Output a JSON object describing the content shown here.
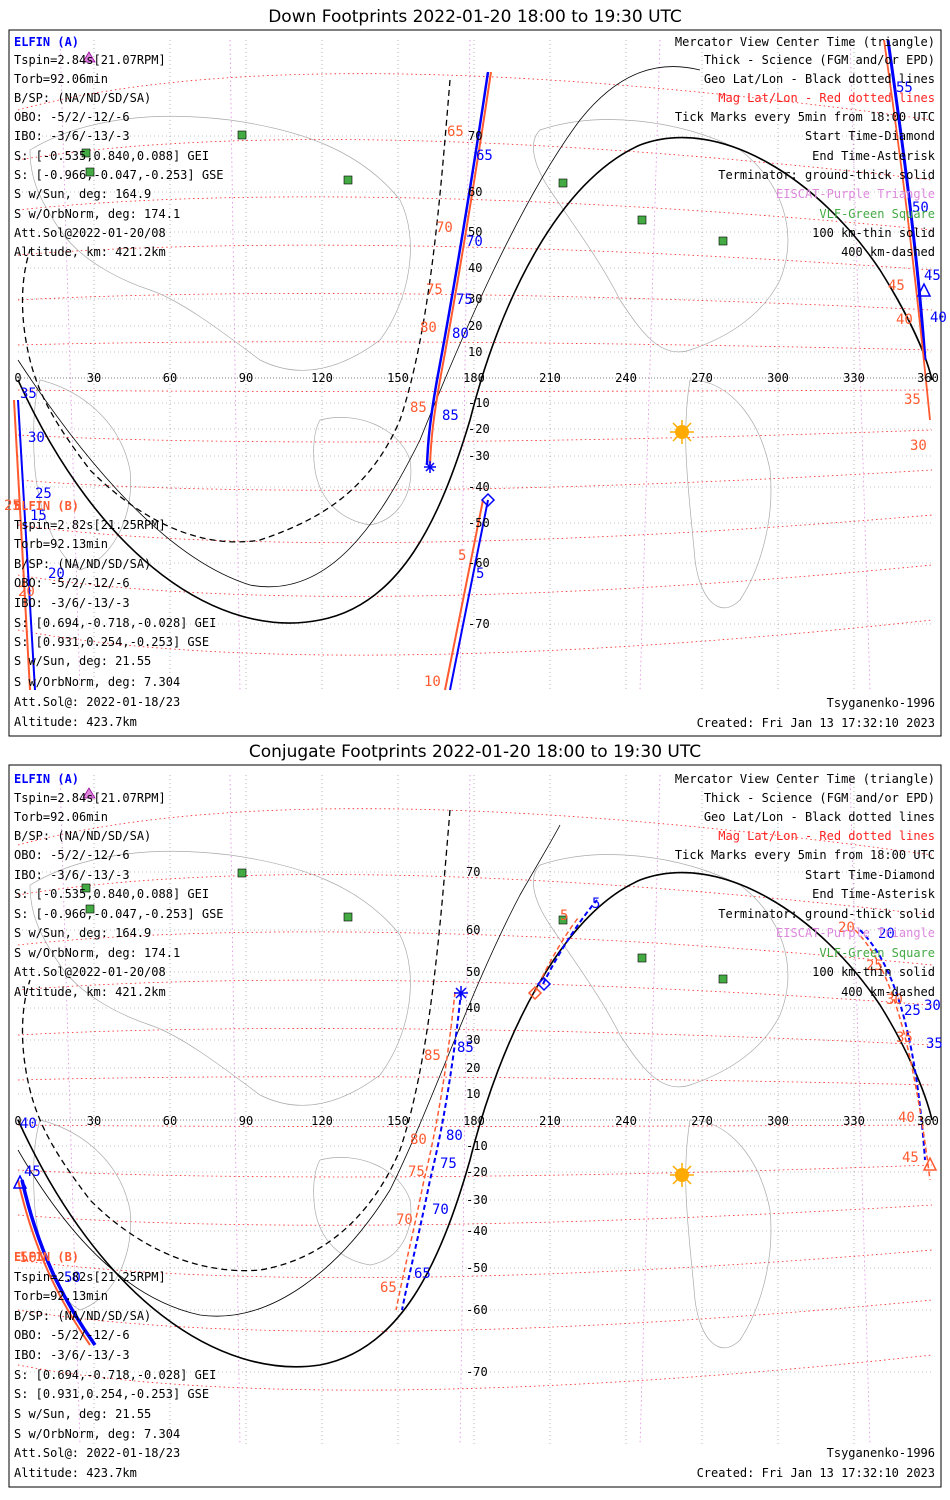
{
  "panels": [
    {
      "title": "Down Footprints 2022-01-20 18:00 to 19:30 UTC",
      "elfin_a": {
        "header": "ELFIN (A)",
        "lines": [
          "Tspin=2.84s[21.07RPM]",
          "Torb=92.06min",
          "B/SP: (NA/ND/SD/SA)",
          "OBO: -5/2/-12/-6",
          "IBO: -3/6/-13/-3",
          "S: [-0.535,0.840,0.088] GEI",
          "S: [-0.966,-0.047,-0.253] GSE",
          "S w/Sun, deg: 164.9",
          "S w/OrbNorm, deg: 174.1",
          "Att.Sol@2022-01-20/08",
          "Altitude, km: 421.2km"
        ]
      },
      "elfin_b": {
        "header": "ELFIN (B)",
        "lines": [
          "Tspin=2.82s[21.25RPM]",
          "Torb=92.13min",
          "B/SP: (NA/ND/SD/SA)",
          "OBO: -5/2/-12/-6",
          "IBO: -3/6/-13/-3",
          "S: [0.694,-0.718,-0.028] GEI",
          "S: [0.931,0.254,-0.253] GSE",
          "S w/Sun, deg: 21.55",
          "S w/OrbNorm, deg: 7.304",
          "Att.Sol@: 2022-01-18/23",
          "Altitude: 423.7km"
        ]
      },
      "legend": [
        "Mercator View Center Time (triangle)",
        "Thick - Science (FGM and/or EPD)",
        "Geo Lat/Lon - Black dotted lines",
        "Mag Lat/Lon - Red dotted lines",
        "Tick Marks every 5min from 18:00 UTC",
        "Start Time-Diamond",
        "End Time-Asterisk",
        "Terminator: ground-thick solid",
        "EISCAT-Purple Triangle",
        "VLF-Green Square",
        "100 km-thin solid",
        "400 km-dashed"
      ],
      "legend_colors": [
        "#000000",
        "#000000",
        "#000000",
        "#ff2020",
        "#000000",
        "#000000",
        "#000000",
        "#000000",
        "#dd88dd",
        "#44aa44",
        "#000000",
        "#000000"
      ],
      "model": "Tsyganenko-1996",
      "created": "Created: Fri Jan 13 17:32:10 2023",
      "lon_ticks": [
        "0",
        "30",
        "60",
        "90",
        "120",
        "150",
        "180",
        "210",
        "240",
        "270",
        "300",
        "330",
        "360"
      ],
      "lat_ticks": [
        "70",
        "60",
        "50",
        "40",
        "30",
        "20",
        "10",
        "-10",
        "-20",
        "-30",
        "-40",
        "-50",
        "-60",
        "-70"
      ],
      "blue_labels": [
        "65",
        "70",
        "75",
        "80",
        "85",
        "35",
        "30",
        "25",
        "20",
        "15",
        "55",
        "50",
        "45",
        "40",
        "5"
      ],
      "orange_labels": [
        "65",
        "70",
        "75",
        "80",
        "85",
        "5",
        "10",
        "20",
        "25",
        "45",
        "40",
        "35",
        "30"
      ]
    },
    {
      "title": "Conjugate Footprints 2022-01-20 18:00 to 19:30 UTC",
      "elfin_a": {
        "header": "ELFIN (A)",
        "lines": [
          "Tspin=2.84s[21.07RPM]",
          "Torb=92.06min",
          "B/SP: (NA/ND/SD/SA)",
          "OBO: -5/2/-12/-6",
          "IBO: -3/6/-13/-3",
          "S: [-0.535,0.840,0.088] GEI",
          "S: [-0.966,-0.047,-0.253] GSE",
          "S w/Sun, deg: 164.9",
          "S w/OrbNorm, deg: 174.1",
          "Att.Sol@2022-01-20/08",
          "Altitude, km: 421.2km"
        ]
      },
      "elfin_b": {
        "header": "ELFIN (B)",
        "lines": [
          "Tspin=2.82s[21.25RPM]",
          "Torb=92.13min",
          "B/SP: (NA/ND/SD/SA)",
          "OBO: -5/2/-12/-6",
          "IBO: -3/6/-13/-3",
          "S: [0.694,-0.718,-0.028] GEI",
          "S: [0.931,0.254,-0.253] GSE",
          "S w/Sun, deg: 21.55",
          "S w/OrbNorm, deg: 7.304",
          "Att.Sol@: 2022-01-18/23",
          "Altitude: 423.7km"
        ]
      },
      "legend": [
        "Mercator View Center Time (triangle)",
        "Thick - Science (FGM and/or EPD)",
        "Geo Lat/Lon - Black dotted lines",
        "Mag Lat/Lon - Red dotted lines",
        "Tick Marks every 5min from 18:00 UTC",
        "Start Time-Diamond",
        "End Time-Asterisk",
        "Terminator: ground-thick solid",
        "EISCAT-Purple Triangle",
        "VLF-Green Square",
        "100 km-thin solid",
        "400 km-dashed"
      ],
      "legend_colors": [
        "#000000",
        "#000000",
        "#000000",
        "#ff2020",
        "#000000",
        "#000000",
        "#000000",
        "#000000",
        "#dd88dd",
        "#44aa44",
        "#000000",
        "#000000"
      ],
      "model": "Tsyganenko-1996",
      "created": "Created: Fri Jan 13 17:32:10 2023",
      "lon_ticks": [
        "0",
        "30",
        "60",
        "90",
        "120",
        "150",
        "180",
        "210",
        "240",
        "270",
        "300",
        "330",
        "360"
      ],
      "lat_ticks": [
        "70",
        "60",
        "50",
        "40",
        "30",
        "20",
        "10",
        "-10",
        "-20",
        "-30",
        "-40",
        "-50",
        "-60",
        "-70"
      ],
      "blue_labels": [
        "5",
        "85",
        "80",
        "75",
        "70",
        "65",
        "20",
        "25",
        "30",
        "35",
        "40",
        "45",
        "50"
      ],
      "orange_labels": [
        "5",
        "85",
        "80",
        "75",
        "70",
        "65",
        "20",
        "25",
        "30",
        "35",
        "40",
        "45",
        "50"
      ]
    }
  ]
}
